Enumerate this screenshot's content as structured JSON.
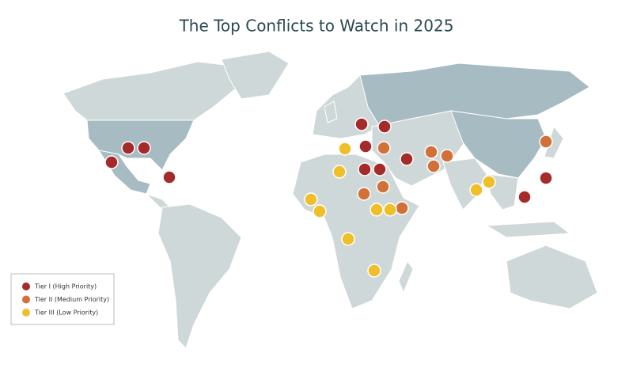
{
  "title": "The Top Conflicts to Watch in 2025",
  "legend": [
    {
      "label": "Tier I (High Priority)",
      "color": "#a52a2a"
    },
    {
      "label": "Tier II (Medium Priority)",
      "color": "#d2703a"
    },
    {
      "label": "Tier III (Low Priority)",
      "color": "#efbf2a"
    }
  ]
}
